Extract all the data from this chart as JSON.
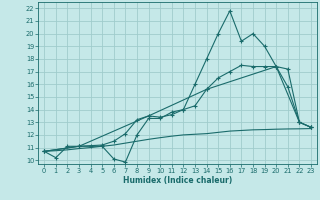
{
  "xlabel": "Humidex (Indice chaleur)",
  "bg_color": "#c5e8e8",
  "grid_color": "#a0cccc",
  "line_color": "#1a6b6b",
  "xlim": [
    -0.5,
    23.5
  ],
  "ylim": [
    9.7,
    22.5
  ],
  "xticks": [
    0,
    1,
    2,
    3,
    4,
    5,
    6,
    7,
    8,
    9,
    10,
    11,
    12,
    13,
    14,
    15,
    16,
    17,
    18,
    19,
    20,
    21,
    22,
    23
  ],
  "yticks": [
    10,
    11,
    12,
    13,
    14,
    15,
    16,
    17,
    18,
    19,
    20,
    21,
    22
  ],
  "curve_main_x": [
    0,
    1,
    2,
    3,
    4,
    5,
    6,
    7,
    8,
    9,
    10,
    11,
    12,
    13,
    14,
    15,
    16,
    17,
    18,
    19,
    20,
    21,
    22,
    23
  ],
  "curve_main_y": [
    10.7,
    10.2,
    11.1,
    11.1,
    11.1,
    11.1,
    10.1,
    9.85,
    12.0,
    13.3,
    13.3,
    13.8,
    14.0,
    16.0,
    18.0,
    20.0,
    21.8,
    19.4,
    20.0,
    19.0,
    17.4,
    15.8,
    13.0,
    12.6
  ],
  "curve2_x": [
    0,
    3,
    5,
    6,
    7,
    8,
    9,
    10,
    11,
    12,
    13,
    14,
    15,
    16,
    17,
    18,
    19,
    20,
    21,
    22,
    23
  ],
  "curve2_y": [
    10.7,
    11.1,
    11.2,
    11.5,
    12.1,
    13.2,
    13.5,
    13.4,
    13.6,
    14.0,
    14.3,
    15.6,
    16.5,
    17.0,
    17.5,
    17.4,
    17.4,
    17.4,
    17.2,
    13.0,
    12.6
  ],
  "curve3_x": [
    0,
    3,
    9,
    14,
    20,
    22,
    23
  ],
  "curve3_y": [
    10.7,
    11.1,
    13.5,
    15.6,
    17.4,
    13.0,
    12.6
  ],
  "curve_flat_x": [
    0,
    1,
    2,
    3,
    4,
    5,
    6,
    7,
    8,
    9,
    10,
    11,
    12,
    13,
    14,
    15,
    16,
    17,
    18,
    19,
    20,
    21,
    22,
    23
  ],
  "curve_flat_y": [
    10.7,
    10.75,
    10.82,
    10.92,
    11.0,
    11.1,
    11.2,
    11.35,
    11.5,
    11.65,
    11.78,
    11.9,
    12.0,
    12.05,
    12.1,
    12.2,
    12.3,
    12.35,
    12.4,
    12.42,
    12.45,
    12.47,
    12.48,
    12.5
  ]
}
